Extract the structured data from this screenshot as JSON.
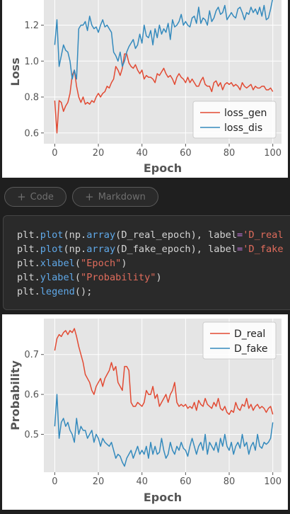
{
  "colors": {
    "gen": "#e24a33",
    "dis": "#348abd",
    "plot_bg": "#e5e5e5",
    "grid": "#ffffff"
  },
  "toolbar": {
    "code_label": "Code",
    "markdown_label": "Markdown",
    "plus_icon": "plus-icon"
  },
  "code": {
    "lines": [
      [
        [
          "plt",
          "p"
        ],
        [
          ".",
          "p"
        ],
        [
          "plot",
          "fn"
        ],
        [
          "(np.",
          "p"
        ],
        [
          "array",
          "fn"
        ],
        [
          "(D_real_epoch), label",
          "p"
        ],
        [
          "=",
          "kw"
        ],
        [
          "'D_real",
          "str"
        ]
      ],
      [
        [
          "plt",
          "p"
        ],
        [
          ".",
          "p"
        ],
        [
          "plot",
          "fn"
        ],
        [
          "(np.",
          "p"
        ],
        [
          "array",
          "fn"
        ],
        [
          "(D_fake_epoch), label",
          "p"
        ],
        [
          "=",
          "kw"
        ],
        [
          "'D_fake",
          "str"
        ]
      ],
      [
        [
          "plt",
          "p"
        ],
        [
          ".",
          "p"
        ],
        [
          "xlabel",
          "fn"
        ],
        [
          "(",
          "p"
        ],
        [
          "\"Epoch\"",
          "str"
        ],
        [
          ")",
          "p"
        ]
      ],
      [
        [
          "plt",
          "p"
        ],
        [
          ".",
          "p"
        ],
        [
          "ylabel",
          "fn"
        ],
        [
          "(",
          "p"
        ],
        [
          "\"Probability\"",
          "str"
        ],
        [
          ")",
          "p"
        ]
      ],
      [
        [
          "plt",
          "p"
        ],
        [
          ".",
          "p"
        ],
        [
          "legend",
          "fn"
        ],
        [
          "();",
          "p"
        ]
      ]
    ]
  },
  "chart_data": [
    {
      "type": "line",
      "title": "",
      "xlabel": "Epoch",
      "ylabel": "Loss",
      "xlim": [
        -5,
        104
      ],
      "ylim": [
        0.54,
        1.34
      ],
      "xticks": [
        0,
        20,
        40,
        60,
        80,
        100
      ],
      "yticks": [
        0.6,
        0.8,
        1.0,
        1.2
      ],
      "grid": true,
      "legend": "lower-right",
      "series": [
        {
          "name": "loss_gen",
          "values": [
            0.78,
            0.6,
            0.78,
            0.77,
            0.72,
            0.75,
            0.77,
            0.82,
            0.92,
            0.95,
            0.86,
            0.8,
            0.77,
            0.8,
            0.76,
            0.77,
            0.76,
            0.78,
            0.77,
            0.8,
            0.82,
            0.8,
            0.82,
            0.83,
            0.86,
            0.85,
            0.88,
            0.9,
            0.97,
            0.95,
            0.92,
            0.96,
            1.04,
            1.04,
            0.99,
            0.97,
            0.96,
            0.98,
            0.95,
            0.93,
            0.95,
            0.9,
            0.92,
            0.91,
            0.91,
            0.9,
            0.88,
            0.93,
            0.92,
            0.94,
            0.96,
            0.93,
            0.91,
            0.92,
            0.9,
            0.87,
            0.91,
            0.93,
            0.91,
            0.9,
            0.88,
            0.91,
            0.88,
            0.9,
            0.88,
            0.86,
            0.86,
            0.89,
            0.91,
            0.87,
            0.86,
            0.86,
            0.83,
            0.88,
            0.89,
            0.86,
            0.88,
            0.84,
            0.87,
            0.88,
            0.87,
            0.88,
            0.86,
            0.87,
            0.86,
            0.84,
            0.88,
            0.86,
            0.85,
            0.86,
            0.87,
            0.84,
            0.86,
            0.85,
            0.85,
            0.86,
            0.86,
            0.84,
            0.84,
            0.85,
            0.83
          ]
        },
        {
          "name": "loss_dis",
          "values": [
            1.09,
            1.23,
            0.97,
            1.03,
            1.09,
            1.06,
            1.05,
            1.0,
            0.9,
            0.95,
            0.9,
            1.18,
            1.2,
            1.2,
            1.22,
            1.17,
            1.25,
            1.2,
            1.18,
            1.19,
            1.16,
            1.2,
            1.23,
            1.19,
            1.2,
            1.18,
            1.16,
            1.05,
            1.03,
            1.0,
            1.05,
            0.97,
            1.0,
            1.05,
            1.08,
            1.1,
            1.12,
            1.07,
            1.09,
            1.15,
            1.1,
            1.2,
            1.14,
            1.13,
            1.17,
            1.09,
            1.18,
            1.13,
            1.2,
            1.15,
            1.18,
            1.16,
            1.21,
            1.12,
            1.23,
            1.19,
            1.2,
            1.22,
            1.26,
            1.2,
            1.22,
            1.2,
            1.19,
            1.24,
            1.25,
            1.21,
            1.3,
            1.21,
            1.24,
            1.23,
            1.2,
            1.28,
            1.22,
            1.24,
            1.28,
            1.3,
            1.26,
            1.27,
            1.31,
            1.23,
            1.25,
            1.27,
            1.25,
            1.24,
            1.29,
            1.3,
            1.27,
            1.23,
            1.27,
            1.26,
            1.3,
            1.27,
            1.29,
            1.26,
            1.3,
            1.25,
            1.31,
            1.23,
            1.24,
            1.29,
            1.35
          ]
        }
      ]
    },
    {
      "type": "line",
      "title": "",
      "xlabel": "Epoch",
      "ylabel": "Probability",
      "xlim": [
        -5,
        104
      ],
      "ylim": [
        0.405,
        0.79
      ],
      "xticks": [
        0,
        20,
        40,
        60,
        80,
        100
      ],
      "yticks": [
        0.5,
        0.6,
        0.7
      ],
      "grid": true,
      "legend": "top-right",
      "series": [
        {
          "name": "D_real",
          "values": [
            0.71,
            0.74,
            0.75,
            0.745,
            0.755,
            0.76,
            0.75,
            0.76,
            0.755,
            0.765,
            0.745,
            0.72,
            0.7,
            0.68,
            0.65,
            0.64,
            0.63,
            0.61,
            0.6,
            0.62,
            0.63,
            0.64,
            0.62,
            0.64,
            0.65,
            0.66,
            0.68,
            0.66,
            0.67,
            0.63,
            0.62,
            0.61,
            0.67,
            0.67,
            0.66,
            0.58,
            0.57,
            0.57,
            0.58,
            0.575,
            0.57,
            0.58,
            0.61,
            0.6,
            0.6,
            0.62,
            0.59,
            0.6,
            0.57,
            0.58,
            0.59,
            0.6,
            0.58,
            0.6,
            0.61,
            0.63,
            0.58,
            0.57,
            0.575,
            0.57,
            0.575,
            0.565,
            0.57,
            0.565,
            0.58,
            0.56,
            0.585,
            0.575,
            0.57,
            0.59,
            0.575,
            0.57,
            0.565,
            0.58,
            0.57,
            0.59,
            0.565,
            0.56,
            0.57,
            0.555,
            0.55,
            0.56,
            0.555,
            0.58,
            0.565,
            0.56,
            0.575,
            0.57,
            0.59,
            0.565,
            0.575,
            0.56,
            0.57,
            0.575,
            0.565,
            0.57,
            0.565,
            0.555,
            0.565,
            0.57,
            0.55
          ]
        },
        {
          "name": "D_fake",
          "values": [
            0.52,
            0.6,
            0.49,
            0.53,
            0.54,
            0.52,
            0.53,
            0.51,
            0.5,
            0.48,
            0.54,
            0.5,
            0.52,
            0.51,
            0.51,
            0.49,
            0.5,
            0.51,
            0.48,
            0.5,
            0.49,
            0.47,
            0.49,
            0.48,
            0.475,
            0.47,
            0.48,
            0.46,
            0.44,
            0.45,
            0.445,
            0.43,
            0.42,
            0.44,
            0.45,
            0.46,
            0.44,
            0.455,
            0.47,
            0.45,
            0.46,
            0.45,
            0.47,
            0.44,
            0.48,
            0.45,
            0.47,
            0.45,
            0.455,
            0.49,
            0.46,
            0.44,
            0.45,
            0.48,
            0.46,
            0.45,
            0.47,
            0.46,
            0.48,
            0.465,
            0.46,
            0.445,
            0.47,
            0.49,
            0.47,
            0.45,
            0.47,
            0.48,
            0.46,
            0.5,
            0.45,
            0.48,
            0.47,
            0.46,
            0.48,
            0.455,
            0.49,
            0.47,
            0.5,
            0.47,
            0.46,
            0.48,
            0.45,
            0.47,
            0.48,
            0.465,
            0.5,
            0.47,
            0.48,
            0.45,
            0.47,
            0.48,
            0.46,
            0.5,
            0.47,
            0.465,
            0.48,
            0.475,
            0.48,
            0.49,
            0.53
          ]
        }
      ]
    }
  ]
}
